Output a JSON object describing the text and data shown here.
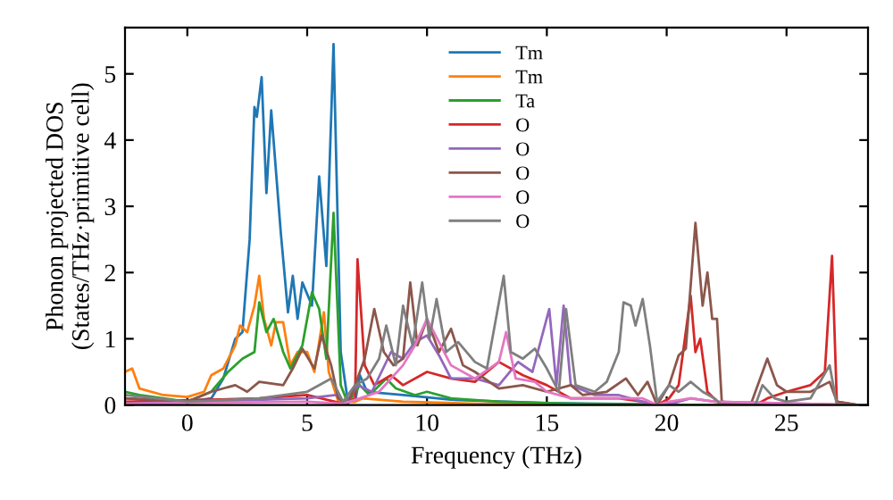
{
  "chart_data": {
    "type": "line",
    "xlabel": "Frequency (THz)",
    "ylabel": "Phonon projected DOS\n(States/THz·primitive cell)",
    "xlim": [
      -2.6,
      28.4
    ],
    "ylim": [
      0,
      5.7
    ],
    "xticks": [
      0,
      5,
      10,
      15,
      20,
      25
    ],
    "yticks": [
      0,
      1,
      2,
      3,
      4,
      5
    ],
    "grid": false,
    "legend": "top",
    "marker": "none",
    "line_style": "solid",
    "series": [
      {
        "name": "Tm",
        "color": "#1f77b4",
        "x": [
          -2.6,
          0,
          1,
          1.5,
          2,
          2.3,
          2.6,
          2.8,
          2.9,
          3.1,
          3.3,
          3.5,
          3.9,
          4.2,
          4.4,
          4.6,
          4.8,
          5.2,
          5.5,
          5.8,
          6.1,
          6.4,
          6.7,
          7.0,
          7.2,
          7.5,
          9,
          11,
          15,
          19.5,
          20,
          28
        ],
        "values": [
          0.1,
          0.05,
          0.1,
          0.4,
          1.0,
          1.1,
          2.5,
          4.5,
          4.35,
          4.95,
          3.2,
          4.45,
          2.6,
          1.4,
          1.95,
          1.3,
          1.85,
          1.5,
          3.45,
          2.1,
          5.45,
          0.8,
          0.05,
          0.05,
          0.45,
          0.2,
          0.15,
          0.08,
          0.03,
          0.01,
          0,
          0
        ]
      },
      {
        "name": "Tm",
        "color": "#ff7f0e",
        "x": [
          -2.6,
          -2.3,
          -2,
          -1,
          0,
          0.7,
          1,
          1.5,
          2,
          2.2,
          2.5,
          2.8,
          3.0,
          3.2,
          3.5,
          3.7,
          4.0,
          4.3,
          4.6,
          5.0,
          5.3,
          5.7,
          5.9,
          6.3,
          7,
          7.3,
          9,
          12,
          20,
          28
        ],
        "values": [
          0.5,
          0.55,
          0.25,
          0.15,
          0.12,
          0.2,
          0.45,
          0.55,
          0.9,
          1.2,
          1.1,
          1.5,
          1.95,
          1.3,
          0.9,
          1.25,
          1.25,
          0.6,
          0.8,
          0.8,
          0.5,
          1.4,
          0.5,
          0.05,
          0.05,
          0.1,
          0.05,
          0.02,
          0,
          0
        ]
      },
      {
        "name": "Ta",
        "color": "#2ca02c",
        "x": [
          -2.6,
          -2,
          -1,
          0,
          1,
          1.7,
          2.3,
          2.8,
          3.0,
          3.3,
          3.6,
          4.0,
          4.3,
          4.8,
          5.2,
          5.5,
          5.8,
          6.1,
          6.4,
          6.7,
          7.2,
          7.6,
          8.3,
          8.7,
          9.5,
          10,
          11,
          13,
          16,
          20,
          28
        ],
        "values": [
          0.2,
          0.15,
          0.1,
          0.05,
          0.2,
          0.5,
          0.7,
          0.8,
          1.55,
          1.1,
          1.3,
          0.8,
          0.55,
          0.9,
          1.7,
          1.45,
          0.7,
          2.9,
          0.3,
          0.02,
          0.3,
          0.15,
          0.4,
          0.25,
          0.15,
          0.2,
          0.1,
          0.05,
          0.02,
          0,
          0
        ]
      },
      {
        "name": "O",
        "color": "#d62728",
        "x": [
          -2.6,
          3,
          5,
          6.5,
          7.0,
          7.1,
          7.4,
          7.8,
          8.5,
          9,
          10,
          11,
          12,
          13,
          14,
          15,
          16,
          17,
          18,
          19,
          19.6,
          20.1,
          20.5,
          21,
          21.2,
          21.4,
          21.7,
          22.2,
          23.7,
          24.2,
          25,
          26,
          26.6,
          26.9,
          27.1,
          28
        ],
        "values": [
          0.05,
          0.1,
          0.15,
          0.02,
          0.1,
          2.2,
          0.6,
          0.3,
          0.45,
          0.3,
          0.5,
          0.4,
          0.35,
          0.65,
          0.45,
          0.3,
          0.1,
          0.1,
          0.1,
          0.05,
          0,
          0.1,
          0.3,
          1.65,
          0.8,
          1.0,
          0.2,
          0.02,
          0,
          0.1,
          0.2,
          0.3,
          0.5,
          2.25,
          0.05,
          0
        ]
      },
      {
        "name": "O",
        "color": "#9467bd",
        "x": [
          -2.6,
          5,
          6.2,
          6.6,
          7.1,
          7.7,
          8.5,
          9,
          9.5,
          10,
          10.5,
          11,
          12,
          13,
          13.8,
          14.4,
          15.1,
          15.4,
          15.7,
          16,
          17,
          18,
          19,
          19.6,
          20.2,
          21,
          22,
          28
        ],
        "values": [
          0.02,
          0.1,
          0.15,
          0.02,
          0.3,
          0.2,
          0.8,
          0.7,
          0.95,
          1.05,
          0.75,
          0.4,
          0.4,
          0.3,
          0.65,
          0.5,
          1.45,
          0.3,
          1.5,
          0.3,
          0.15,
          0.15,
          0.05,
          0,
          0.02,
          0.1,
          0.05,
          0
        ]
      },
      {
        "name": "O",
        "color": "#8c564b",
        "x": [
          -2.6,
          0,
          1,
          2,
          2.5,
          3,
          4,
          4.4,
          4.8,
          5.3,
          5.6,
          6,
          6.3,
          6.7,
          7.0,
          7.4,
          7.8,
          8.2,
          8.6,
          9,
          9.3,
          9.6,
          10,
          10.5,
          11,
          11.5,
          12,
          13,
          14,
          15,
          16,
          16.5,
          17.5,
          18.3,
          18.8,
          19.2,
          19.6,
          20.1,
          20.5,
          20.8,
          21.2,
          21.5,
          21.7,
          21.9,
          22.1,
          22.3,
          23.5,
          24.2,
          24.6,
          25,
          26,
          26.8,
          27.1,
          28
        ],
        "values": [
          0.1,
          0.05,
          0.2,
          0.3,
          0.2,
          0.35,
          0.3,
          0.55,
          0.85,
          0.55,
          1.05,
          0.6,
          0.1,
          0.02,
          0.3,
          0.7,
          1.45,
          0.8,
          0.6,
          0.7,
          1.85,
          0.9,
          1.3,
          0.8,
          1.15,
          0.6,
          0.5,
          0.25,
          0.3,
          0.2,
          0.3,
          0.15,
          0.2,
          0.4,
          0.15,
          0.35,
          0,
          0.3,
          0.75,
          0.85,
          2.75,
          1.5,
          2.0,
          1.3,
          1.3,
          0.05,
          0,
          0.7,
          0.3,
          0.2,
          0.2,
          0.35,
          0.05,
          0
        ]
      },
      {
        "name": "O",
        "color": "#e377c2",
        "x": [
          -2.6,
          5,
          6.5,
          7.2,
          8,
          9,
          9.5,
          10,
          10.5,
          11,
          12,
          13,
          13.3,
          13.7,
          14.5,
          15,
          16,
          18,
          19,
          19.6,
          20.1,
          21,
          22,
          28
        ],
        "values": [
          0.02,
          0.05,
          0.02,
          0.1,
          0.2,
          0.6,
          0.9,
          1.3,
          0.95,
          0.6,
          0.4,
          0.65,
          1.1,
          0.4,
          0.35,
          0.2,
          0.1,
          0.1,
          0.1,
          0,
          0.05,
          0.1,
          0.05,
          0
        ]
      },
      {
        "name": "O",
        "color": "#7f7f7f",
        "x": [
          -2.6,
          0,
          3,
          5,
          6,
          6.5,
          7.0,
          7.5,
          8,
          8.3,
          8.7,
          9,
          9.4,
          9.8,
          10.1,
          10.4,
          10.8,
          11.3,
          12,
          12.5,
          13.2,
          13.5,
          14,
          14.5,
          15,
          15.5,
          15.8,
          16.2,
          17,
          17.5,
          18,
          18.2,
          18.5,
          18.7,
          19,
          19.3,
          19.6,
          20.1,
          20.5,
          21,
          21.5,
          22,
          22.3,
          23.7,
          24,
          24.5,
          25,
          26,
          26.8,
          27.1,
          28
        ],
        "values": [
          0.15,
          0.05,
          0.1,
          0.2,
          0.4,
          0.05,
          0.3,
          0.4,
          0.7,
          1.2,
          0.6,
          1.5,
          0.9,
          1.85,
          1.0,
          1.6,
          0.8,
          0.95,
          0.65,
          0.55,
          1.95,
          0.8,
          0.7,
          0.85,
          0.55,
          0.2,
          1.45,
          0.3,
          0.2,
          0.35,
          0.8,
          1.55,
          1.5,
          1.2,
          1.6,
          0.9,
          0.05,
          0.3,
          0.2,
          0.35,
          0.2,
          0.1,
          0,
          0,
          0.3,
          0.1,
          0.05,
          0.1,
          0.6,
          0,
          0
        ]
      }
    ]
  }
}
